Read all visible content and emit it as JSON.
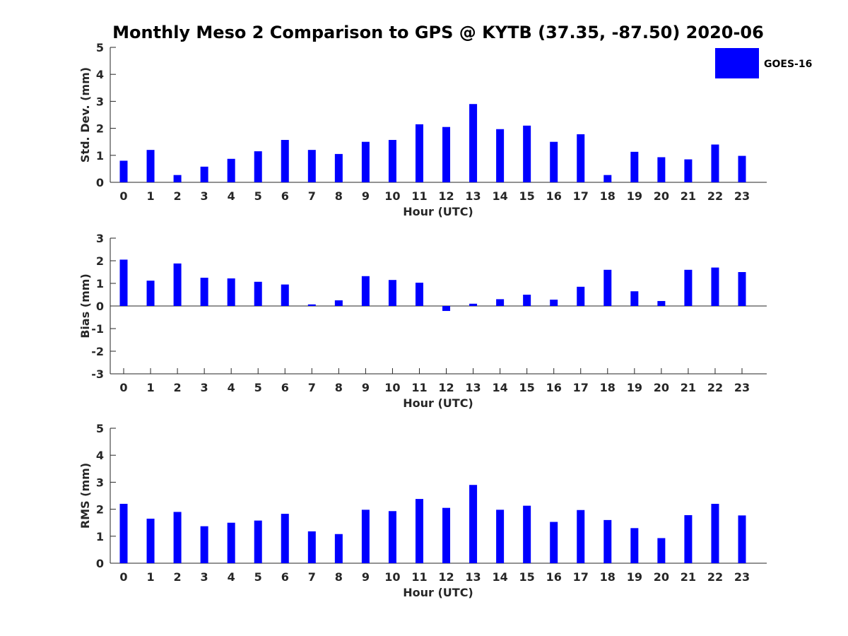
{
  "chart_data": {
    "type": "bar",
    "title": "Monthly Meso 2 Comparison to GPS @ KYTB (37.35, -87.50) 2020-06",
    "legend": {
      "entries": [
        "GOES-16"
      ],
      "placement": "top-right"
    },
    "series_color": "#0000ff",
    "panels": [
      {
        "ylabel": "Std. Dev. (mm)",
        "xlabel": "Hour (UTC)",
        "ylim": [
          0,
          5
        ],
        "yticks": [
          0,
          1,
          2,
          3,
          4,
          5
        ],
        "categories": [
          0,
          1,
          2,
          3,
          4,
          5,
          6,
          7,
          8,
          9,
          10,
          11,
          12,
          13,
          14,
          15,
          16,
          17,
          18,
          19,
          20,
          21,
          22,
          23
        ],
        "series": [
          {
            "name": "GOES-16",
            "values": [
              0.8,
              1.2,
              0.27,
              0.58,
              0.87,
              1.15,
              1.57,
              1.2,
              1.05,
              1.5,
              1.57,
              2.15,
              2.05,
              2.9,
              1.97,
              2.1,
              1.5,
              1.78,
              0.27,
              1.13,
              0.93,
              0.85,
              1.4,
              0.98
            ]
          }
        ]
      },
      {
        "ylabel": "Bias (mm)",
        "xlabel": "Hour (UTC)",
        "ylim": [
          -3,
          3
        ],
        "yticks": [
          -3,
          -2,
          -1,
          0,
          1,
          2,
          3
        ],
        "categories": [
          0,
          1,
          2,
          3,
          4,
          5,
          6,
          7,
          8,
          9,
          10,
          11,
          12,
          13,
          14,
          15,
          16,
          17,
          18,
          19,
          20,
          21,
          22,
          23
        ],
        "series": [
          {
            "name": "GOES-16",
            "values": [
              2.05,
              1.12,
              1.88,
              1.25,
              1.22,
              1.07,
              0.95,
              0.07,
              0.25,
              1.32,
              1.15,
              1.03,
              -0.22,
              0.1,
              0.3,
              0.5,
              0.28,
              0.85,
              1.6,
              0.65,
              0.22,
              1.6,
              1.7,
              1.5
            ]
          }
        ]
      },
      {
        "ylabel": "RMS (mm)",
        "xlabel": "Hour (UTC)",
        "ylim": [
          0,
          5
        ],
        "yticks": [
          0,
          1,
          2,
          3,
          4,
          5
        ],
        "categories": [
          0,
          1,
          2,
          3,
          4,
          5,
          6,
          7,
          8,
          9,
          10,
          11,
          12,
          13,
          14,
          15,
          16,
          17,
          18,
          19,
          20,
          21,
          22,
          23
        ],
        "series": [
          {
            "name": "GOES-16",
            "values": [
              2.2,
              1.65,
              1.9,
              1.37,
              1.5,
              1.58,
              1.83,
              1.18,
              1.08,
              1.98,
              1.93,
              2.38,
              2.05,
              2.9,
              1.98,
              2.13,
              1.53,
              1.97,
              1.6,
              1.3,
              0.93,
              1.78,
              2.2,
              1.77
            ]
          }
        ]
      }
    ]
  }
}
